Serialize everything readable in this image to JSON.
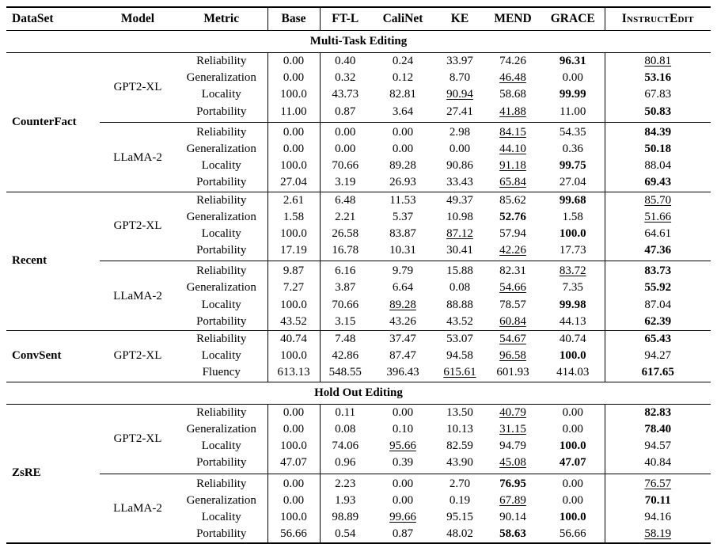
{
  "colors": {
    "text": "#000000",
    "background": "#ffffff",
    "rule": "#000000"
  },
  "table": {
    "columns": [
      "DataSet",
      "Model",
      "Metric",
      "Base",
      "FT-L",
      "CaliNet",
      "KE",
      "MEND",
      "GRACE",
      "InstructEdit"
    ],
    "sections": [
      {
        "title": "Multi-Task Editing",
        "groups": [
          {
            "dataset": "CounterFact",
            "blocks": [
              {
                "model": "GPT2-XL",
                "rows": [
                  {
                    "metric": "Reliability",
                    "values": [
                      "0.00",
                      "0.40",
                      "0.24",
                      "33.97",
                      "74.26",
                      "96.31",
                      "80.81"
                    ],
                    "bold": 5,
                    "underline": 6
                  },
                  {
                    "metric": "Generalization",
                    "values": [
                      "0.00",
                      "0.32",
                      "0.12",
                      "8.70",
                      "46.48",
                      "0.00",
                      "53.16"
                    ],
                    "bold": 6,
                    "underline": 4
                  },
                  {
                    "metric": "Locality",
                    "values": [
                      "100.0",
                      "43.73",
                      "82.81",
                      "90.94",
                      "58.68",
                      "99.99",
                      "67.83"
                    ],
                    "bold": 5,
                    "underline": 3
                  },
                  {
                    "metric": "Portability",
                    "values": [
                      "11.00",
                      "0.87",
                      "3.64",
                      "27.41",
                      "41.88",
                      "11.00",
                      "50.83"
                    ],
                    "bold": 6,
                    "underline": 4
                  }
                ]
              },
              {
                "model": "LLaMA-2",
                "rows": [
                  {
                    "metric": "Reliability",
                    "values": [
                      "0.00",
                      "0.00",
                      "0.00",
                      "2.98",
                      "84.15",
                      "54.35",
                      "84.39"
                    ],
                    "bold": 6,
                    "underline": 4
                  },
                  {
                    "metric": "Generalization",
                    "values": [
                      "0.00",
                      "0.00",
                      "0.00",
                      "0.00",
                      "44.10",
                      "0.36",
                      "50.18"
                    ],
                    "bold": 6,
                    "underline": 4
                  },
                  {
                    "metric": "Locality",
                    "values": [
                      "100.0",
                      "70.66",
                      "89.28",
                      "90.86",
                      "91.18",
                      "99.75",
                      "88.04"
                    ],
                    "bold": 5,
                    "underline": 4
                  },
                  {
                    "metric": "Portability",
                    "values": [
                      "27.04",
                      "3.19",
                      "26.93",
                      "33.43",
                      "65.84",
                      "27.04",
                      "69.43"
                    ],
                    "bold": 6,
                    "underline": 4
                  }
                ]
              }
            ]
          },
          {
            "dataset": "Recent",
            "blocks": [
              {
                "model": "GPT2-XL",
                "rows": [
                  {
                    "metric": "Reliability",
                    "values": [
                      "2.61",
                      "6.48",
                      "11.53",
                      "49.37",
                      "85.62",
                      "99.68",
                      "85.70"
                    ],
                    "bold": 5,
                    "underline": 6
                  },
                  {
                    "metric": "Generalization",
                    "values": [
                      "1.58",
                      "2.21",
                      "5.37",
                      "10.98",
                      "52.76",
                      "1.58",
                      "51.66"
                    ],
                    "bold": 4,
                    "underline": 6
                  },
                  {
                    "metric": "Locality",
                    "values": [
                      "100.0",
                      "26.58",
                      "83.87",
                      "87.12",
                      "57.94",
                      "100.0",
                      "64.61"
                    ],
                    "bold": 5,
                    "underline": 3
                  },
                  {
                    "metric": "Portability",
                    "values": [
                      "17.19",
                      "16.78",
                      "10.31",
                      "30.41",
                      "42.26",
                      "17.73",
                      "47.36"
                    ],
                    "bold": 6,
                    "underline": 4
                  }
                ]
              },
              {
                "model": "LLaMA-2",
                "rows": [
                  {
                    "metric": "Reliability",
                    "values": [
                      "9.87",
                      "6.16",
                      "9.79",
                      "15.88",
                      "82.31",
                      "83.72",
                      "83.73"
                    ],
                    "bold": 6,
                    "underline": 5
                  },
                  {
                    "metric": "Generalization",
                    "values": [
                      "7.27",
                      "3.87",
                      "6.64",
                      "0.08",
                      "54.66",
                      "7.35",
                      "55.92"
                    ],
                    "bold": 6,
                    "underline": 4
                  },
                  {
                    "metric": "Locality",
                    "values": [
                      "100.0",
                      "70.66",
                      "89.28",
                      "88.88",
                      "78.57",
                      "99.98",
                      "87.04"
                    ],
                    "bold": 5,
                    "underline": 2
                  },
                  {
                    "metric": "Portability",
                    "values": [
                      "43.52",
                      "3.15",
                      "43.26",
                      "43.52",
                      "60.84",
                      "44.13",
                      "62.39"
                    ],
                    "bold": 6,
                    "underline": 4
                  }
                ]
              }
            ]
          },
          {
            "dataset": "ConvSent",
            "blocks": [
              {
                "model": "GPT2-XL",
                "rows": [
                  {
                    "metric": "Reliability",
                    "values": [
                      "40.74",
                      "7.48",
                      "37.47",
                      "53.07",
                      "54.67",
                      "40.74",
                      "65.43"
                    ],
                    "bold": 6,
                    "underline": 4
                  },
                  {
                    "metric": "Locality",
                    "values": [
                      "100.0",
                      "42.86",
                      "87.47",
                      "94.58",
                      "96.58",
                      "100.0",
                      "94.27"
                    ],
                    "bold": 5,
                    "underline": 4
                  },
                  {
                    "metric": "Fluency",
                    "values": [
                      "613.13",
                      "548.55",
                      "396.43",
                      "615.61",
                      "601.93",
                      "414.03",
                      "617.65"
                    ],
                    "bold": 6,
                    "underline": 3
                  }
                ]
              }
            ]
          }
        ]
      },
      {
        "title": "Hold Out Editing",
        "groups": [
          {
            "dataset": "ZsRE",
            "blocks": [
              {
                "model": "GPT2-XL",
                "rows": [
                  {
                    "metric": "Reliability",
                    "values": [
                      "0.00",
                      "0.11",
                      "0.00",
                      "13.50",
                      "40.79",
                      "0.00",
                      "82.83"
                    ],
                    "bold": 6,
                    "underline": 4
                  },
                  {
                    "metric": "Generalization",
                    "values": [
                      "0.00",
                      "0.08",
                      "0.10",
                      "10.13",
                      "31.15",
                      "0.00",
                      "78.40"
                    ],
                    "bold": 6,
                    "underline": 4
                  },
                  {
                    "metric": "Locality",
                    "values": [
                      "100.0",
                      "74.06",
                      "95.66",
                      "82.59",
                      "94.79",
                      "100.0",
                      "94.57"
                    ],
                    "bold": 5,
                    "underline": 2
                  },
                  {
                    "metric": "Portability",
                    "values": [
                      "47.07",
                      "0.96",
                      "0.39",
                      "43.90",
                      "45.08",
                      "47.07",
                      "40.84"
                    ],
                    "bold": 5,
                    "underline": 4
                  }
                ]
              },
              {
                "model": "LLaMA-2",
                "rows": [
                  {
                    "metric": "Reliability",
                    "values": [
                      "0.00",
                      "2.23",
                      "0.00",
                      "2.70",
                      "76.95",
                      "0.00",
                      "76.57"
                    ],
                    "bold": 4,
                    "underline": 6
                  },
                  {
                    "metric": "Generalization",
                    "values": [
                      "0.00",
                      "1.93",
                      "0.00",
                      "0.19",
                      "67.89",
                      "0.00",
                      "70.11"
                    ],
                    "bold": 6,
                    "underline": 4
                  },
                  {
                    "metric": "Locality",
                    "values": [
                      "100.0",
                      "98.89",
                      "99.66",
                      "95.15",
                      "90.14",
                      "100.0",
                      "94.16"
                    ],
                    "bold": 5,
                    "underline": 2
                  },
                  {
                    "metric": "Portability",
                    "values": [
                      "56.66",
                      "0.54",
                      "0.87",
                      "48.02",
                      "58.63",
                      "56.66",
                      "58.19"
                    ],
                    "bold": 4,
                    "underline": 6
                  }
                ]
              }
            ]
          }
        ]
      }
    ]
  }
}
